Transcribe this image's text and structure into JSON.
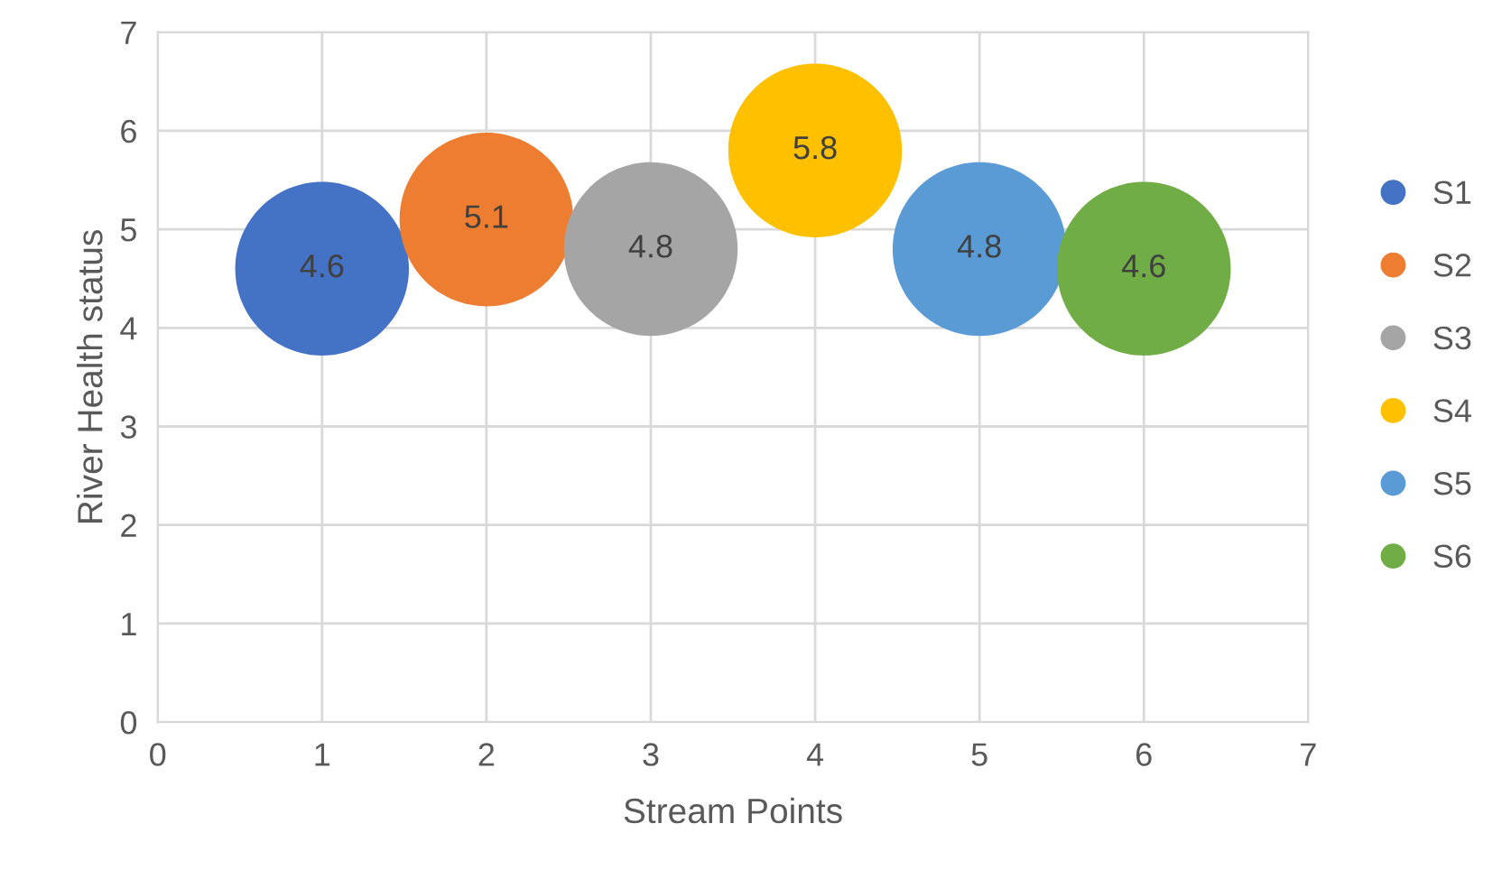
{
  "chart_data": {
    "type": "bubble",
    "xlabel": "Stream Points",
    "ylabel": "River Health status",
    "xlim": [
      0,
      7
    ],
    "ylim": [
      0,
      7
    ],
    "xticks": [
      0,
      1,
      2,
      3,
      4,
      5,
      6,
      7
    ],
    "yticks": [
      0,
      1,
      2,
      3,
      4,
      5,
      6,
      7
    ],
    "grid": true,
    "legend": "right",
    "data_labels": true,
    "series": [
      {
        "name": "S1",
        "color": "#4472c4",
        "x": [
          1
        ],
        "values": [
          4.6
        ],
        "sizes": [
          1
        ]
      },
      {
        "name": "S2",
        "color": "#ed7d31",
        "x": [
          2
        ],
        "values": [
          5.1
        ],
        "sizes": [
          1
        ]
      },
      {
        "name": "S3",
        "color": "#a5a5a5",
        "x": [
          3
        ],
        "values": [
          4.8
        ],
        "sizes": [
          1
        ]
      },
      {
        "name": "S4",
        "color": "#ffc000",
        "x": [
          4
        ],
        "values": [
          5.8
        ],
        "sizes": [
          1
        ]
      },
      {
        "name": "S5",
        "color": "#5b9bd5",
        "x": [
          5
        ],
        "values": [
          4.8
        ],
        "sizes": [
          1
        ]
      },
      {
        "name": "S6",
        "color": "#70ad47",
        "x": [
          6
        ],
        "values": [
          4.6
        ],
        "sizes": [
          1
        ]
      }
    ]
  }
}
